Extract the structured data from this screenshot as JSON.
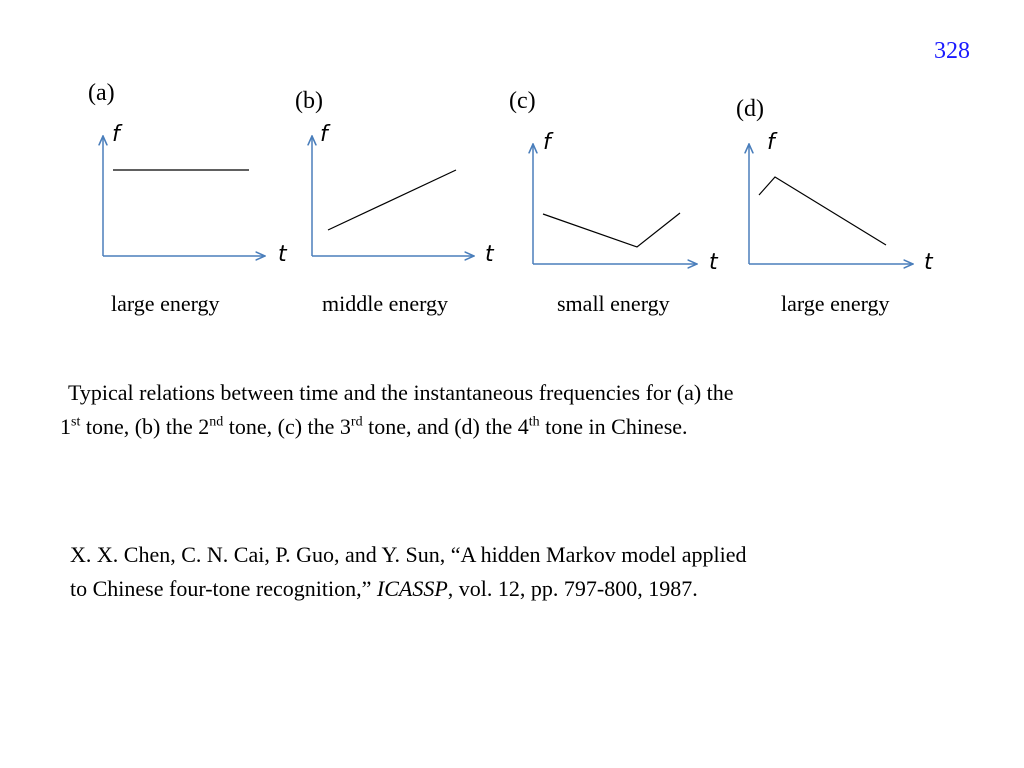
{
  "page_number": "328",
  "panels": [
    {
      "id": "a",
      "label": "(a)",
      "y_label": "f",
      "x_label": "t",
      "energy": "large energy"
    },
    {
      "id": "b",
      "label": "(b)",
      "y_label": "f",
      "x_label": "t",
      "energy": "middle energy"
    },
    {
      "id": "c",
      "label": "(c)",
      "y_label": "f",
      "x_label": "t",
      "energy": "small energy"
    },
    {
      "id": "d",
      "label": "(d)",
      "y_label": "f",
      "x_label": "t",
      "energy": "large energy"
    }
  ],
  "colors": {
    "axis": "#4a7ebb",
    "curve": "#000000",
    "page_number": "#1a1aff"
  },
  "caption": {
    "line1": "Typical relations between time and the instantaneous frequencies for (a) the",
    "ord1_num": "1",
    "ord1_sup": "st",
    "seg1": " tone, (b) the ",
    "ord2_num": "2",
    "ord2_sup": "nd",
    "seg2": " tone, (c) the ",
    "ord3_num": "3",
    "ord3_sup": "rd",
    "seg3": " tone, and (d) the ",
    "ord4_num": "4",
    "ord4_sup": "th",
    "seg4": " tone in Chinese."
  },
  "reference": {
    "line1": "X. X. Chen, C. N. Cai, P. Guo, and Y. Sun, “A hidden Markov model applied",
    "line2_start": "to Chinese four-tone recognition,” ",
    "venue": "ICASSP",
    "line2_end": ", vol. 12, pp. 797-800, 1987."
  }
}
